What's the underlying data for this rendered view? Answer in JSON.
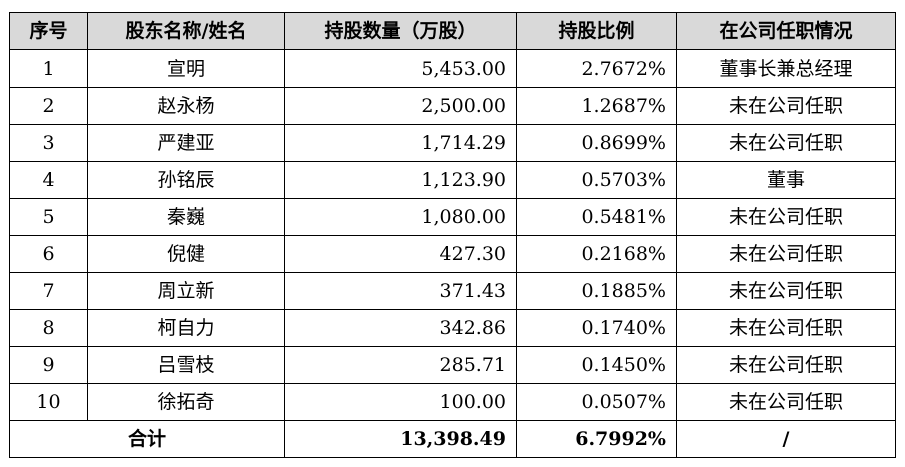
{
  "table": {
    "headers": {
      "index": "序号",
      "name": "股东名称/姓名",
      "shares": "持股数量（万股）",
      "ratio": "持股比例",
      "position": "在公司任职情况"
    },
    "rows": [
      {
        "index": "1",
        "name": "宣明",
        "shares": "5,453.00",
        "ratio": "2.7672%",
        "position": "董事长兼总经理"
      },
      {
        "index": "2",
        "name": "赵永杨",
        "shares": "2,500.00",
        "ratio": "1.2687%",
        "position": "未在公司任职"
      },
      {
        "index": "3",
        "name": "严建亚",
        "shares": "1,714.29",
        "ratio": "0.8699%",
        "position": "未在公司任职"
      },
      {
        "index": "4",
        "name": "孙铭辰",
        "shares": "1,123.90",
        "ratio": "0.5703%",
        "position": "董事"
      },
      {
        "index": "5",
        "name": "秦巍",
        "shares": "1,080.00",
        "ratio": "0.5481%",
        "position": "未在公司任职"
      },
      {
        "index": "6",
        "name": "倪健",
        "shares": "427.30",
        "ratio": "0.2168%",
        "position": "未在公司任职"
      },
      {
        "index": "7",
        "name": "周立新",
        "shares": "371.43",
        "ratio": "0.1885%",
        "position": "未在公司任职"
      },
      {
        "index": "8",
        "name": "柯自力",
        "shares": "342.86",
        "ratio": "0.1740%",
        "position": "未在公司任职"
      },
      {
        "index": "9",
        "name": "吕雪枝",
        "shares": "285.71",
        "ratio": "0.1450%",
        "position": "未在公司任职"
      },
      {
        "index": "10",
        "name": "徐拓奇",
        "shares": "100.00",
        "ratio": "0.0507%",
        "position": "未在公司任职"
      }
    ],
    "total": {
      "label": "合计",
      "shares": "13,398.49",
      "ratio": "6.7992%",
      "position": "/"
    }
  }
}
